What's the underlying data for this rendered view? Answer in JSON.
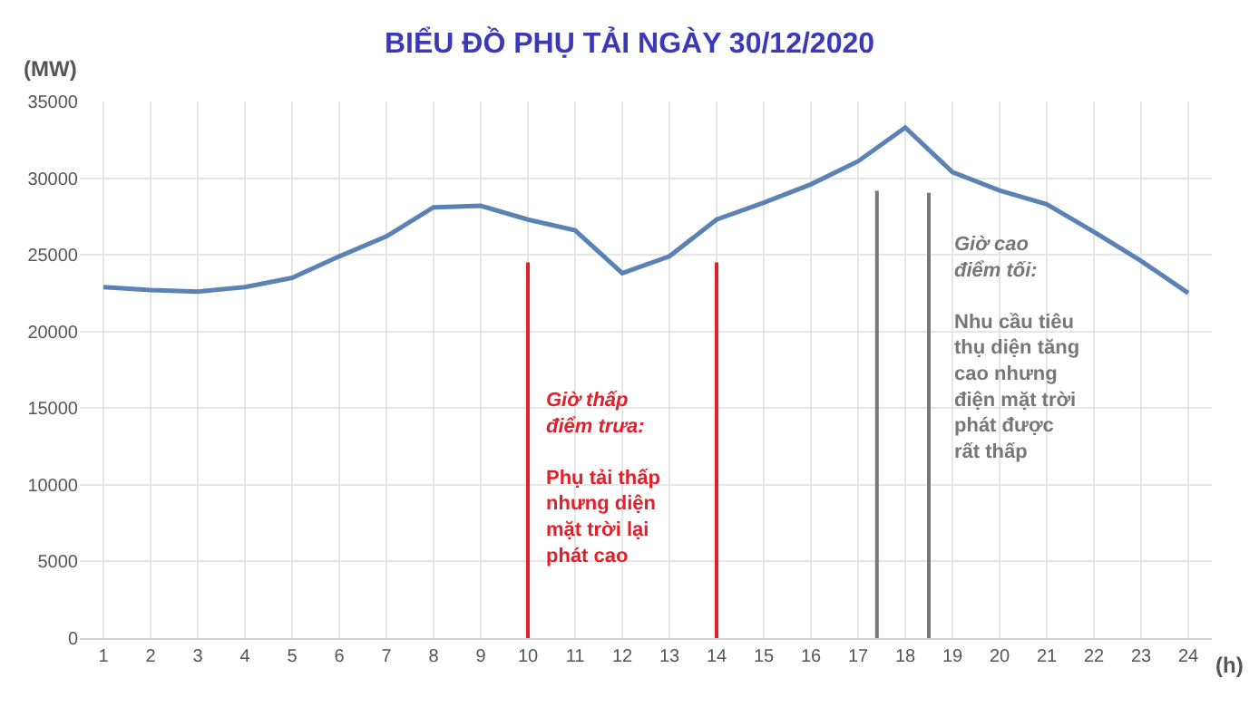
{
  "chart_data": {
    "type": "line",
    "title": "BIỂU ĐỒ PHỤ TẢI NGÀY 30/12/2020",
    "xlabel": "(h)",
    "ylabel": "(MW)",
    "x": [
      1,
      2,
      3,
      4,
      5,
      6,
      7,
      8,
      9,
      10,
      11,
      12,
      13,
      14,
      15,
      16,
      17,
      18,
      19,
      20,
      21,
      22,
      23,
      24
    ],
    "series": [
      {
        "color": "#5b82b5",
        "values": [
          22900,
          22700,
          22600,
          22900,
          23500,
          24900,
          26200,
          28100,
          28200,
          27300,
          26600,
          23800,
          24900,
          27300,
          28400,
          29600,
          31100,
          33300,
          30400,
          29200,
          28300,
          26500,
          24600,
          22500
        ]
      }
    ],
    "xlim": [
      0.5,
      24.5
    ],
    "xticks": [
      1,
      2,
      3,
      4,
      5,
      6,
      7,
      8,
      9,
      10,
      11,
      12,
      13,
      14,
      15,
      16,
      17,
      18,
      19,
      20,
      21,
      22,
      23,
      24
    ],
    "ylim": [
      0,
      35000
    ],
    "yticks": [
      0,
      5000,
      10000,
      15000,
      20000,
      25000,
      30000,
      35000
    ],
    "grid": true,
    "marker": "none",
    "line_style": "solid",
    "ref_lines": [
      {
        "axis": "x",
        "value": 10,
        "color": "#e0202a"
      },
      {
        "axis": "x",
        "value": 14,
        "color": "#e0202a"
      },
      {
        "axis": "x",
        "value": 17.4,
        "color": "#777777"
      },
      {
        "axis": "x",
        "value": 18.5,
        "color": "#777777"
      }
    ],
    "annotations": [
      "Giờ thấp\nđiểm trưa:\n\nPhụ tải thấp\nnhưng diện\nmặt trời lại\nphát cao",
      "Giờ cao\nđiểm tối:\n\nNhu cầu tiêu\nthụ diện tăng\ncao nhưng\nđiện mặt trời\nphát được\nrất thấp"
    ]
  }
}
